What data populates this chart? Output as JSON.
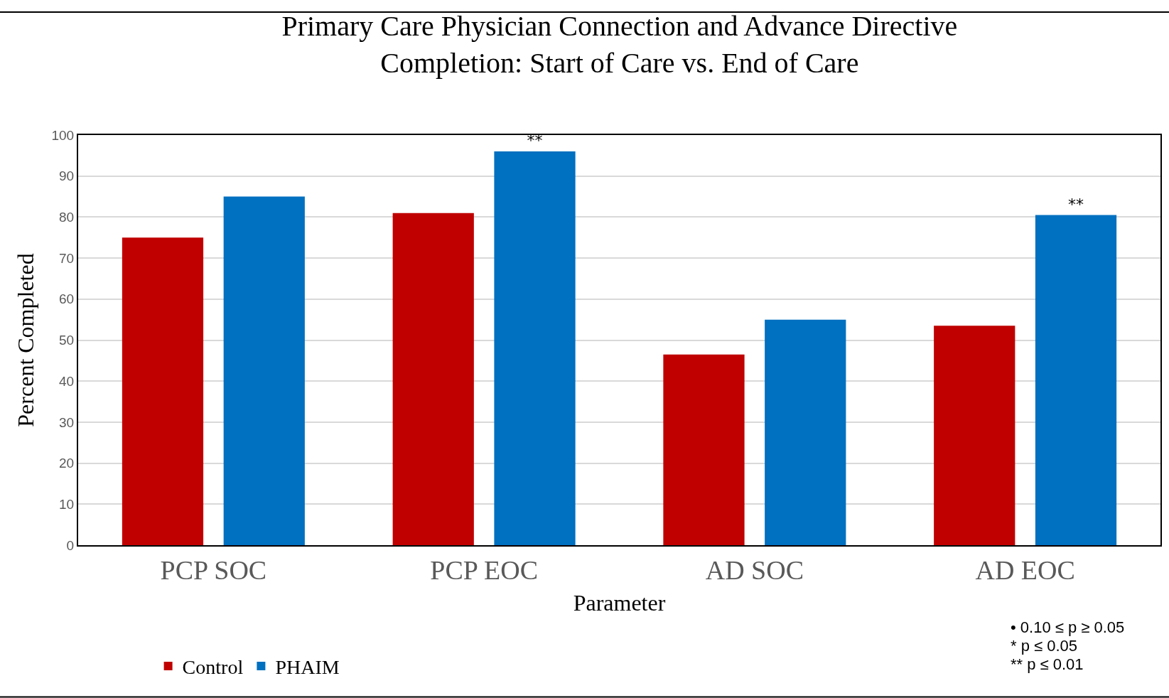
{
  "chart_data": {
    "type": "bar",
    "title": "Primary Care Physician Connection and Advance Directive Completion: Start of Care vs. End of Care",
    "xlabel": "Parameter",
    "ylabel": "Percent Completed",
    "categories": [
      "PCP SOC",
      "PCP EOC",
      "AD SOC",
      "AD EOC"
    ],
    "series": [
      {
        "name": "Control",
        "color": "#c00000",
        "values": [
          75,
          81,
          46.5,
          53.5
        ]
      },
      {
        "name": "PHAIM",
        "color": "#0070c0",
        "values": [
          85,
          96,
          55,
          80.5
        ],
        "value_labels": [
          null,
          "**",
          null,
          "**"
        ]
      }
    ],
    "ylim": [
      0,
      100
    ],
    "yticks": [
      0,
      10,
      20,
      30,
      40,
      50,
      60,
      70,
      80,
      90,
      100
    ],
    "grid": "y",
    "legend": "bottom left",
    "annotations": [
      "• 0.10 ≤ p ≥ 0.05",
      "* p ≤ 0.05",
      "** p ≤ 0.01"
    ]
  }
}
